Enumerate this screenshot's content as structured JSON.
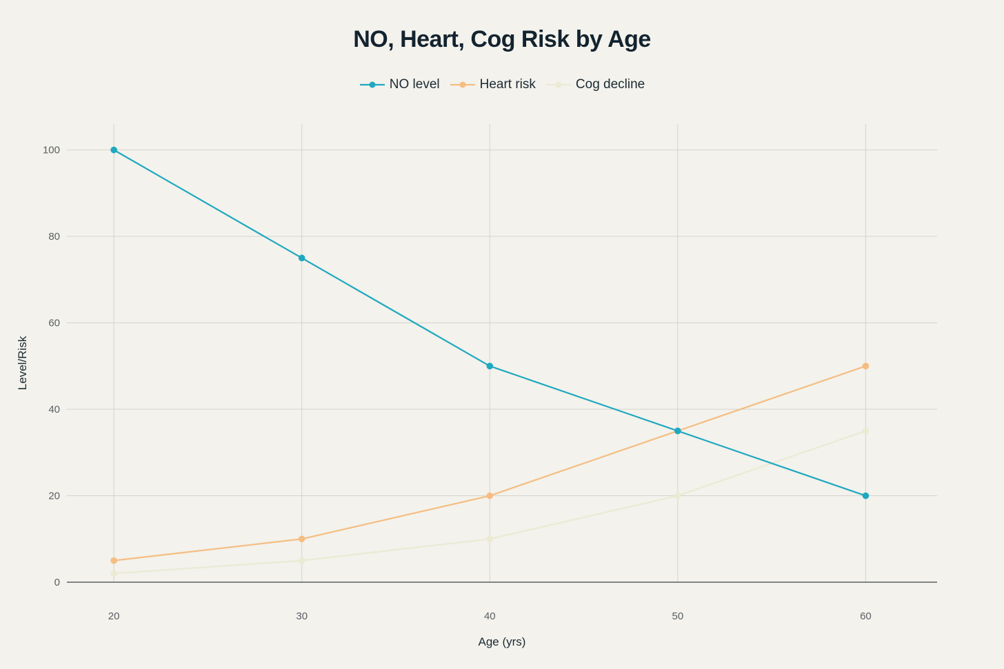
{
  "chart_data": {
    "type": "line",
    "title": "NO, Heart, Cog Risk by Age",
    "xlabel": "Age (yrs)",
    "ylabel": "Level/Risk",
    "x": [
      20,
      30,
      40,
      50,
      60
    ],
    "xlim": [
      17.5,
      63.8
    ],
    "ylim": [
      0,
      106
    ],
    "x_ticks": [
      20,
      30,
      40,
      50,
      60
    ],
    "y_ticks": [
      0,
      20,
      40,
      60,
      80,
      100
    ],
    "grid": true,
    "legend_position": "top-center",
    "series": [
      {
        "name": "NO level",
        "values": [
          100,
          75,
          50,
          35,
          20
        ],
        "color": "#1fa8c0"
      },
      {
        "name": "Heart risk",
        "values": [
          5,
          10,
          20,
          35,
          50
        ],
        "color": "#f5bd82"
      },
      {
        "name": "Cog decline",
        "values": [
          2,
          5,
          10,
          20,
          35
        ],
        "color": "#ebead3"
      }
    ]
  },
  "colors": {
    "background": "#f3f2ec",
    "grid": "#d4d4cd",
    "zero_line": "#3d4347"
  }
}
